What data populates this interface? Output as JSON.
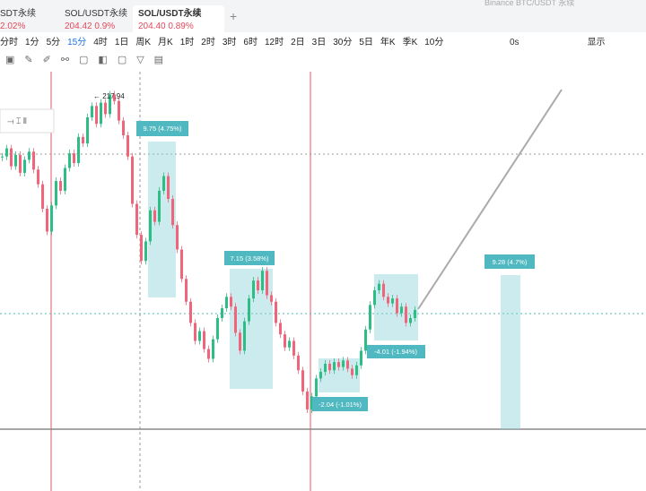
{
  "tabs": [
    {
      "name": "SDT永续",
      "change": "2.02%"
    },
    {
      "name": "SOL/USDT永续",
      "price": "204.42",
      "change": "0.9%"
    },
    {
      "name": "SOL/USDT永续",
      "price": "204.40",
      "change": "0.89%"
    }
  ],
  "search": "Binance BTC/USDT 永续",
  "timeframes": [
    "分时",
    "1分",
    "5分",
    "15分",
    "4时",
    "1日",
    "周K",
    "月K",
    "1时",
    "2时",
    "3时",
    "6时",
    "12时",
    "2日",
    "3日",
    "30分",
    "5日",
    "年K",
    "季K",
    "10分"
  ],
  "toolbar_right": [
    "0s",
    "显示"
  ],
  "chart_data": {
    "type": "candlestick",
    "ylim": [
      193.3,
      219
    ],
    "values": [
      213.8,
      214.3,
      213.2,
      213.9,
      212.8,
      213.6,
      214.1,
      213.0,
      212.1,
      210.6,
      209.2,
      210.8,
      212.3,
      211.7,
      213.1,
      214.0,
      213.4,
      215.0,
      214.6,
      216.2,
      216.9,
      215.8,
      217.1,
      216.4,
      217.6,
      217.2,
      216.0,
      215.1,
      213.8,
      210.9,
      209.0,
      207.4,
      208.6,
      210.5,
      209.8,
      211.7,
      212.6,
      211.2,
      209.6,
      208.1,
      206.3,
      204.9,
      203.6,
      202.5,
      203.1,
      202.0,
      201.4,
      202.6,
      203.9,
      204.5,
      205.2,
      204.6,
      203.0,
      201.9,
      203.7,
      205.1,
      206.2,
      205.6,
      206.8,
      205.3,
      204.9,
      203.6,
      202.9,
      202.1,
      202.5,
      201.6,
      200.7,
      199.4,
      198.3,
      199.1,
      200.2,
      200.6,
      201.1,
      200.7,
      201.2,
      200.9,
      201.3,
      200.8,
      200.4,
      201.0,
      201.9,
      203.2,
      204.7,
      205.6,
      206.0,
      205.2,
      204.8,
      205.1,
      204.2,
      204.6,
      203.6,
      203.9,
      204.4
    ],
    "colors": {
      "up": "#2ebd85",
      "down": "#f0657a"
    },
    "high_label": "← 217.94",
    "measures": [
      "9.75 (4.75%)",
      "7.15 (3.58%)",
      "-2.04 (-1.01%)",
      "-4.01 (-1.94%)",
      "9.28 (4.7%)"
    ]
  }
}
